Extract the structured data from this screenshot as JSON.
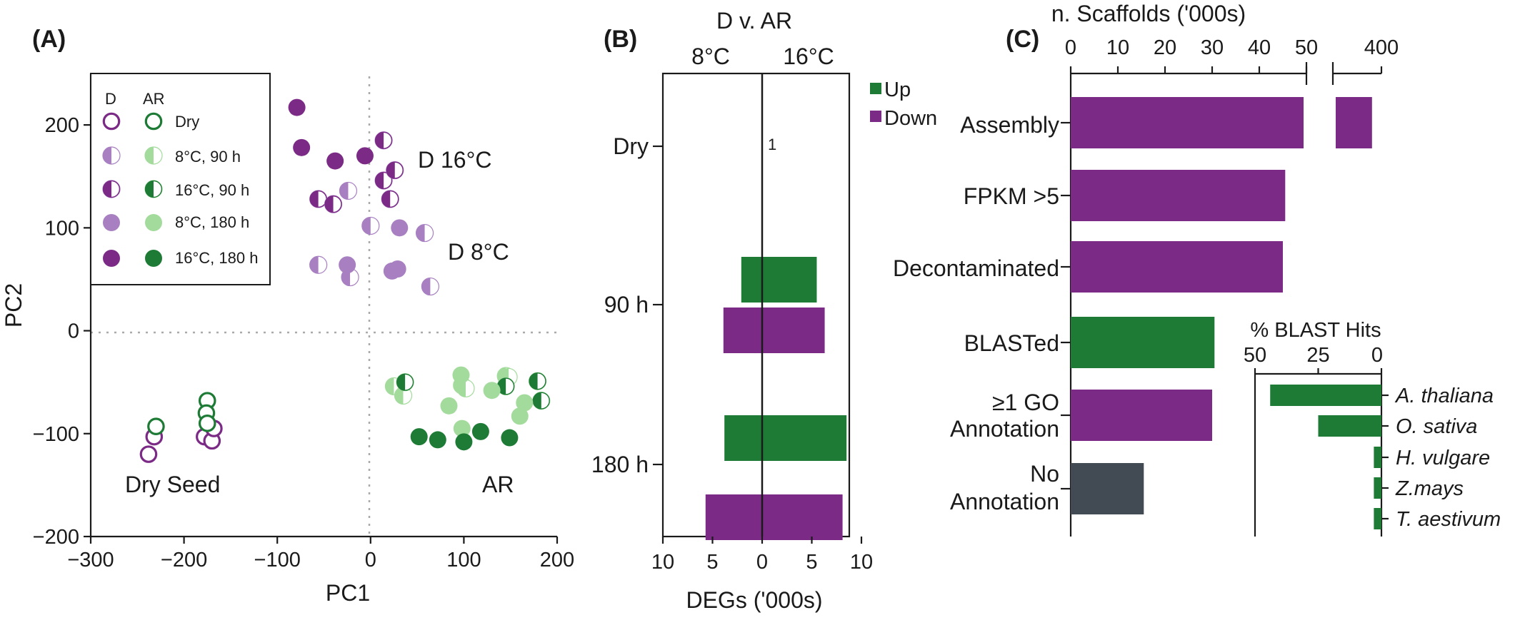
{
  "colors": {
    "purple_dark": "#7B2A86",
    "purple_light": "#A880C2",
    "green_dark": "#1E7B36",
    "green_light": "#A3DB9C",
    "grey": "#424A54"
  },
  "chart_data": [
    {
      "type": "scatter",
      "panel_label": "(A)",
      "xlabel": "PC1",
      "ylabel": "PC2",
      "xlim": [
        -300,
        200
      ],
      "ylim": [
        -200,
        250
      ],
      "xticks": [
        "−300",
        "−200",
        "−100",
        "0",
        "100",
        "200"
      ],
      "yticks": [
        "−200",
        "−100",
        "0",
        "100",
        "200"
      ],
      "legend": {
        "header_d": "D",
        "header_ar": "AR",
        "rows": [
          {
            "label": "Dry",
            "style": "open"
          },
          {
            "label": "8°C, 90 h",
            "style": "half-light"
          },
          {
            "label": "16°C, 90 h",
            "style": "half-dark"
          },
          {
            "label": "8°C, 180 h",
            "style": "filled-light"
          },
          {
            "label": "16°C, 180 h",
            "style": "filled-dark"
          }
        ]
      },
      "annotations": [
        "D 16°C",
        "D 8°C",
        "Dry Seed",
        "AR"
      ],
      "series": [
        {
          "group": "D",
          "condition": "Dry",
          "points": [
            [
              -238,
              -120
            ],
            [
              -232,
              -103
            ],
            [
              -178,
              -103
            ],
            [
              -170,
              -107
            ],
            [
              -168,
              -95
            ]
          ]
        },
        {
          "group": "AR",
          "condition": "Dry",
          "points": [
            [
              -230,
              -93
            ],
            [
              -175,
              -68
            ],
            [
              -176,
              -80
            ],
            [
              -175,
              -90
            ]
          ]
        },
        {
          "group": "D",
          "condition": "8°C, 90 h",
          "points": [
            [
              -24,
              136
            ],
            [
              0,
              102
            ],
            [
              -56,
              64
            ],
            [
              -22,
              52
            ],
            [
              58,
              95
            ],
            [
              64,
              43
            ]
          ]
        },
        {
          "group": "D",
          "condition": "16°C, 90 h",
          "points": [
            [
              -56,
              128
            ],
            [
              -40,
              123
            ],
            [
              14,
              185
            ],
            [
              21,
              128
            ],
            [
              14,
              146
            ],
            [
              26,
              156
            ]
          ]
        },
        {
          "group": "D",
          "condition": "8°C, 180 h",
          "points": [
            [
              31,
              100
            ],
            [
              -25,
              64
            ],
            [
              23,
              58
            ],
            [
              29,
              60
            ]
          ]
        },
        {
          "group": "D",
          "condition": "16°C, 180 h",
          "points": [
            [
              -79,
              217
            ],
            [
              -74,
              178
            ],
            [
              -38,
              165
            ],
            [
              -6,
              170
            ]
          ]
        },
        {
          "group": "AR",
          "condition": "8°C, 90 h",
          "points": [
            [
              25,
              -54
            ],
            [
              35,
              -63
            ],
            [
              98,
              -53
            ],
            [
              102,
              -56
            ],
            [
              145,
              -44
            ],
            [
              148,
              -45
            ]
          ]
        },
        {
          "group": "AR",
          "condition": "16°C, 90 h",
          "points": [
            [
              37,
              -50
            ],
            [
              145,
              -54
            ],
            [
              179,
              -49
            ],
            [
              183,
              -68
            ]
          ]
        },
        {
          "group": "AR",
          "condition": "8°C, 180 h",
          "points": [
            [
              97,
              -43
            ],
            [
              84,
              -73
            ],
            [
              130,
              -58
            ],
            [
              98,
              -95
            ],
            [
              165,
              -70
            ],
            [
              160,
              -83
            ]
          ]
        },
        {
          "group": "AR",
          "condition": "16°C, 180 h",
          "points": [
            [
              52,
              -103
            ],
            [
              72,
              -106
            ],
            [
              100,
              -108
            ],
            [
              118,
              -98
            ],
            [
              149,
              -104
            ]
          ]
        }
      ]
    },
    {
      "type": "bar",
      "panel_label": "(B)",
      "title": "D v. AR",
      "side_labels": [
        "8°C",
        "16°C"
      ],
      "xlabel": "DEGs ('000s)",
      "xticks": [
        "10",
        "5",
        "0",
        "5",
        "10"
      ],
      "xlim": [
        -10,
        10
      ],
      "categories": [
        "Dry",
        "90 h",
        "180 h"
      ],
      "legend": [
        "Up",
        "Down"
      ],
      "dry_value_label": "1",
      "series": [
        {
          "name": "Up",
          "categories": [
            "Dry",
            "90 h",
            "180 h"
          ],
          "left_8C": [
            0,
            -2.1,
            -3.8
          ],
          "right_16C": [
            0,
            5.5,
            8.5
          ]
        },
        {
          "name": "Down",
          "categories": [
            "Dry",
            "90 h",
            "180 h"
          ],
          "left_8C": [
            0,
            -3.9,
            -5.7
          ],
          "right_16C": [
            0.001,
            6.3,
            8.1
          ]
        }
      ]
    },
    {
      "type": "bar",
      "panel_label": "(C)",
      "xlabel": "n. Scaffolds ('000s)",
      "xticks": [
        "0",
        "10",
        "20",
        "30",
        "40",
        "50",
        "400"
      ],
      "x_break": [
        50,
        400
      ],
      "categories": [
        "Assembly",
        "FPKM >5",
        "Decontaminated",
        "BLASTed",
        "≥1 GO Annotation",
        "No Annotation"
      ],
      "values": [
        401,
        45.5,
        45,
        30.5,
        30,
        15.5
      ],
      "bar_colors": [
        "purple_dark",
        "purple_dark",
        "purple_dark",
        "green_dark",
        "purple_dark",
        "grey"
      ]
    },
    {
      "type": "bar",
      "panel_label": "inset",
      "title": "% BLAST Hits",
      "xticks": [
        "50",
        "25",
        "0"
      ],
      "xlim": [
        50,
        0
      ],
      "categories": [
        "A. thaliana",
        "O. sativa",
        "H. vulgare",
        "Z.mays",
        "T. aestivum"
      ],
      "values": [
        44,
        25,
        3,
        3,
        3
      ]
    }
  ]
}
